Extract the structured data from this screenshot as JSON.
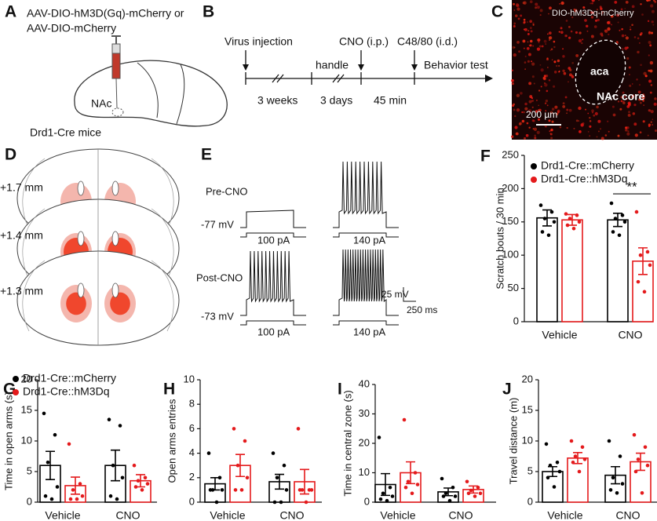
{
  "panels": {
    "labels": [
      "A",
      "B",
      "C",
      "D",
      "E",
      "F",
      "G",
      "H",
      "I",
      "J"
    ],
    "a": {
      "virus_line1": "AAV-DIO-hM3D(Gq)-mCherry or",
      "virus_line2": "AAV-DIO-mCherry",
      "region": "NAc",
      "mice": "Drd1-Cre mice"
    },
    "b": {
      "virus": "Virus injection",
      "handle": "handle",
      "cno": "CNO (i.p.)",
      "c4880": "C48/80 (i.d.)",
      "behavior": "Behavior test",
      "weeks": "3 weeks",
      "days": "3 days",
      "min": "45 min"
    },
    "c": {
      "title": "DIO-hM3Dq-mCherry",
      "aca": "aca",
      "nac": "NAc core",
      "scale": "200 µm"
    },
    "d": {
      "sections": [
        "+1.7 mm",
        "+1.4 mm",
        "+1.3 mm"
      ]
    },
    "e": {
      "pre": "Pre-CNO",
      "post": "Post-CNO",
      "pre_mv": "-77 mV",
      "post_mv": "-73 mV",
      "currents": [
        "100 pA",
        "140 pA"
      ],
      "scale_mv": "25 mV",
      "scale_ms": "250 ms"
    }
  },
  "chart_data": [
    {
      "type": "bar",
      "ylabel": "Scratch bouts / 30 min",
      "categories": [
        "Vehicle",
        "CNO"
      ],
      "ylim": [
        0,
        250
      ],
      "yticks": [
        0,
        50,
        100,
        150,
        200,
        250
      ],
      "legend": true,
      "annotation": "**",
      "series": [
        {
          "name": "Drd1-Cre::mCherry",
          "color": "#000000",
          "values": [
            156,
            153
          ],
          "errors": [
            12,
            10
          ],
          "points": [
            [
              175,
              165,
              155,
              150,
              135,
              130
            ],
            [
              178,
              160,
              155,
              150,
              135,
              130
            ]
          ]
        },
        {
          "name": "Drd1-Cre::hM3Dq",
          "color": "#e41a1c",
          "values": [
            153,
            91
          ],
          "errors": [
            8,
            20
          ],
          "points": [
            [
              162,
              160,
              155,
              150,
              145,
              140
            ],
            [
              165,
              105,
              100,
              85,
              60,
              45
            ]
          ]
        }
      ]
    },
    {
      "type": "bar",
      "ylabel": "Time in open arms (s)",
      "categories": [
        "Vehicle",
        "CNO"
      ],
      "ylim": [
        0,
        20
      ],
      "yticks": [
        0,
        5,
        10,
        15,
        20
      ],
      "legend": true,
      "series": [
        {
          "name": "Drd1-Cre::mCherry",
          "color": "#000000",
          "values": [
            6,
            6
          ],
          "errors": [
            2.3,
            2.5
          ],
          "points": [
            [
              14.5,
              11,
              6.5,
              2.5,
              1,
              0.5
            ],
            [
              13.5,
              12.5,
              6,
              4,
              1,
              0.5
            ]
          ]
        },
        {
          "name": "Drd1-Cre::hM3Dq",
          "color": "#e41a1c",
          "values": [
            2.7,
            3.5
          ],
          "errors": [
            1.4,
            1
          ],
          "points": [
            [
              9.5,
              3,
              2,
              1,
              0.5,
              0.5
            ],
            [
              6,
              4,
              3.5,
              3,
              2.5,
              2
            ]
          ]
        }
      ]
    },
    {
      "type": "bar",
      "ylabel": "Open arms entries",
      "categories": [
        "Vehicle",
        "CNO"
      ],
      "ylim": [
        0,
        10
      ],
      "yticks": [
        0,
        2,
        4,
        6,
        8,
        10
      ],
      "legend": false,
      "series": [
        {
          "color": "#000000",
          "values": [
            1.5,
            1.67
          ],
          "errors": [
            0.5,
            0.6
          ],
          "points": [
            [
              4,
              2,
              1,
              1,
              1,
              0
            ],
            [
              4,
              3,
              2,
              1,
              0,
              0
            ]
          ]
        },
        {
          "color": "#e41a1c",
          "values": [
            3,
            1.67
          ],
          "errors": [
            0.9,
            1
          ],
          "points": [
            [
              6,
              5,
              3,
              2,
              1,
              1
            ],
            [
              6,
              1,
              1,
              1,
              1,
              0
            ]
          ]
        }
      ]
    },
    {
      "type": "bar",
      "ylabel": "Time in central zone (s)",
      "categories": [
        "Vehicle",
        "CNO"
      ],
      "ylim": [
        0,
        40
      ],
      "yticks": [
        0,
        10,
        20,
        30,
        40
      ],
      "legend": false,
      "series": [
        {
          "color": "#000000",
          "values": [
            6,
            3.5
          ],
          "errors": [
            3.7,
            1.3
          ],
          "points": [
            [
              22,
              5,
              3,
              2,
              1,
              0.5
            ],
            [
              8,
              5,
              3,
              2,
              2,
              0.5
            ]
          ]
        },
        {
          "color": "#e41a1c",
          "values": [
            10,
            4.3
          ],
          "errors": [
            3.7,
            1.2
          ],
          "points": [
            [
              28,
              10,
              7,
              6,
              5,
              3
            ],
            [
              7,
              5,
              4,
              3,
              3,
              2
            ]
          ]
        }
      ]
    },
    {
      "type": "bar",
      "ylabel": "Travel distance (m)",
      "categories": [
        "Vehicle",
        "CNO"
      ],
      "ylim": [
        0,
        20
      ],
      "yticks": [
        0,
        5,
        10,
        15,
        20
      ],
      "legend": false,
      "series": [
        {
          "color": "#000000",
          "values": [
            5,
            4.4
          ],
          "errors": [
            0.8,
            1.4
          ],
          "points": [
            [
              9.5,
              6.5,
              6,
              5,
              4,
              2.5
            ],
            [
              10,
              7.5,
              4,
              3,
              2,
              1.5
            ]
          ]
        },
        {
          "color": "#e41a1c",
          "values": [
            7.2,
            6.6
          ],
          "errors": [
            0.9,
            1.4
          ],
          "points": [
            [
              10,
              9,
              7.5,
              7,
              6.5,
              5
            ],
            [
              11,
              9,
              7,
              6,
              5,
              1.5
            ]
          ]
        }
      ]
    }
  ]
}
